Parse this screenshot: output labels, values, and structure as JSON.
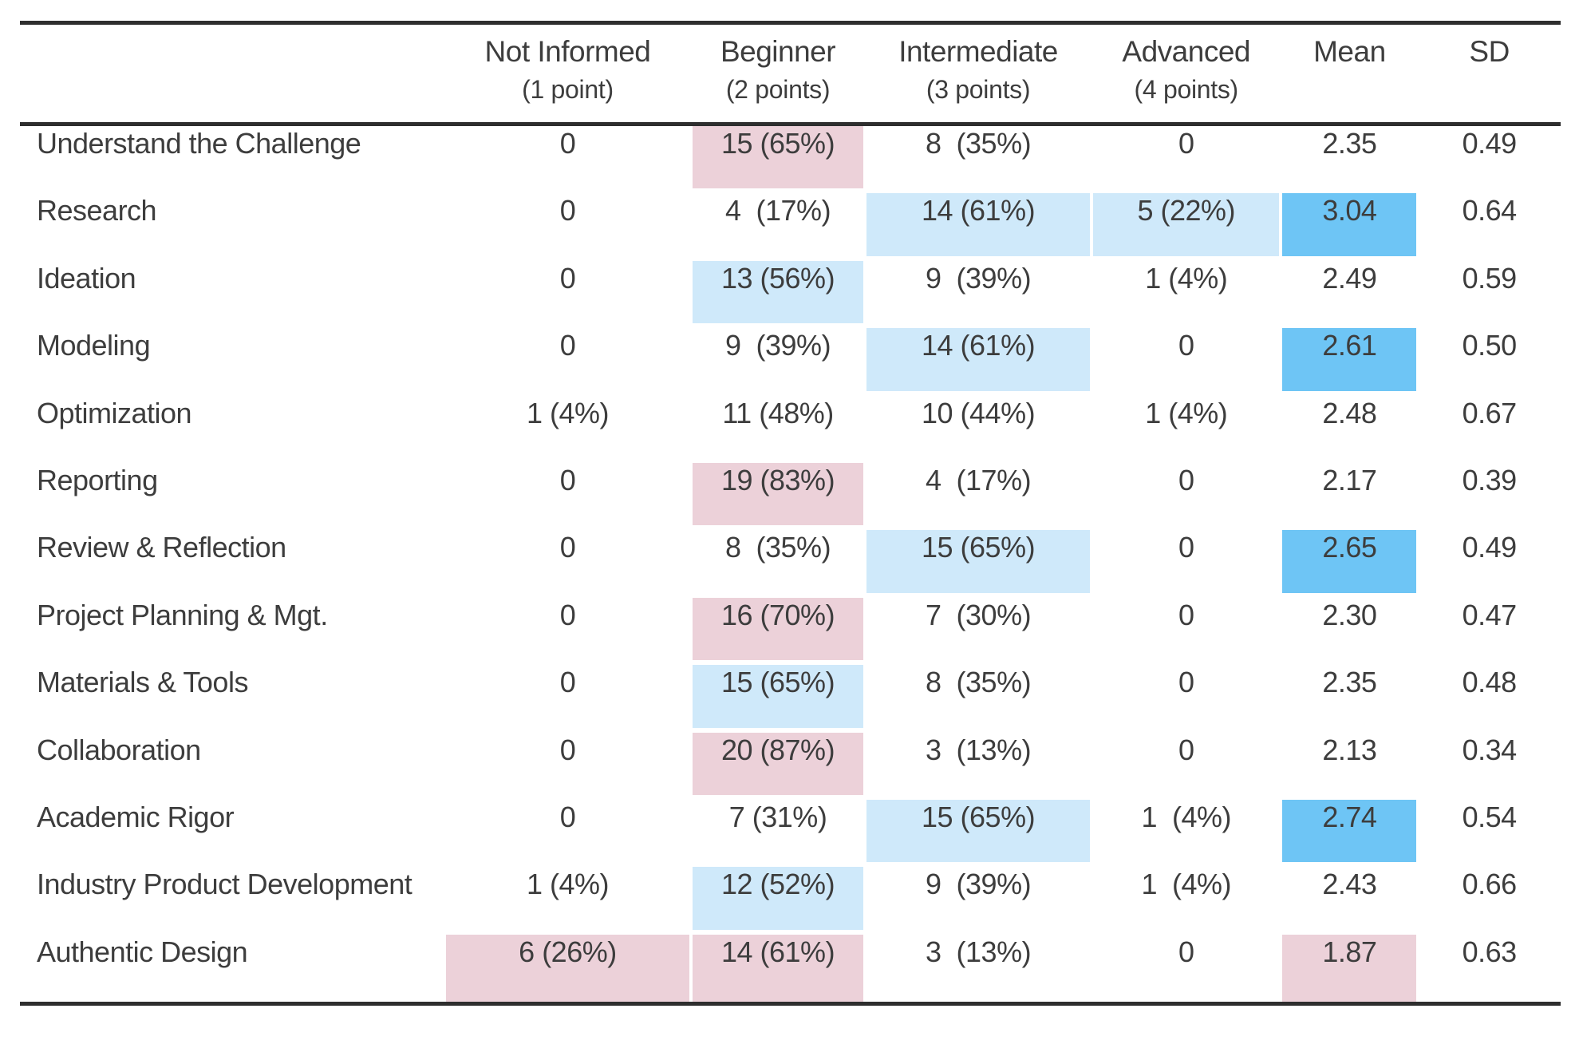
{
  "figure": {
    "colors": {
      "text": "#3d3d3d",
      "rule": "#2e2e2e"
    },
    "highlight_colors": {
      "pink": "#ecd1d9",
      "light_blue": "#cfe9fa",
      "blue": "#6ec5f5"
    },
    "columns": [
      {
        "key": "row-label",
        "label": "",
        "sublabel": ""
      },
      {
        "key": "not-informed",
        "label": "Not Informed",
        "sublabel": "(1 point)"
      },
      {
        "key": "beginner",
        "label": "Beginner",
        "sublabel": "(2 points)"
      },
      {
        "key": "intermediate",
        "label": "Intermediate",
        "sublabel": "(3 points)"
      },
      {
        "key": "advanced",
        "label": "Advanced",
        "sublabel": "(4 points)"
      },
      {
        "key": "mean",
        "label": "Mean",
        "sublabel": ""
      },
      {
        "key": "sd",
        "label": "SD",
        "sublabel": ""
      }
    ],
    "rows": [
      {
        "label": "Understand the Challenge",
        "cells": [
          {
            "text": "0"
          },
          {
            "text": "15 (65%)",
            "highlight": "pink"
          },
          {
            "text": "8  (35%)"
          },
          {
            "text": "0"
          },
          {
            "text": "2.35"
          },
          {
            "text": "0.49"
          }
        ]
      },
      {
        "label": "Research",
        "cells": [
          {
            "text": "0"
          },
          {
            "text": "4  (17%)"
          },
          {
            "text": "14 (61%)",
            "highlight": "light_blue"
          },
          {
            "text": "5 (22%)",
            "highlight": "light_blue"
          },
          {
            "text": "3.04",
            "highlight": "blue"
          },
          {
            "text": "0.64"
          }
        ]
      },
      {
        "label": "Ideation",
        "cells": [
          {
            "text": "0"
          },
          {
            "text": "13 (56%)",
            "highlight": "light_blue"
          },
          {
            "text": "9  (39%)"
          },
          {
            "text": "1 (4%)"
          },
          {
            "text": "2.49"
          },
          {
            "text": "0.59"
          }
        ]
      },
      {
        "label": "Modeling",
        "cells": [
          {
            "text": "0"
          },
          {
            "text": "9  (39%)"
          },
          {
            "text": "14 (61%)",
            "highlight": "light_blue"
          },
          {
            "text": "0"
          },
          {
            "text": "2.61",
            "highlight": "blue"
          },
          {
            "text": "0.50"
          }
        ]
      },
      {
        "label": "Optimization",
        "cells": [
          {
            "text": "1 (4%)"
          },
          {
            "text": "11 (48%)"
          },
          {
            "text": "10 (44%)"
          },
          {
            "text": "1 (4%)"
          },
          {
            "text": "2.48"
          },
          {
            "text": "0.67"
          }
        ]
      },
      {
        "label": "Reporting",
        "cells": [
          {
            "text": "0"
          },
          {
            "text": "19 (83%)",
            "highlight": "pink"
          },
          {
            "text": "4  (17%)"
          },
          {
            "text": "0"
          },
          {
            "text": "2.17"
          },
          {
            "text": "0.39"
          }
        ]
      },
      {
        "label": "Review & Reflection",
        "cells": [
          {
            "text": "0"
          },
          {
            "text": "8  (35%)"
          },
          {
            "text": "15 (65%)",
            "highlight": "light_blue"
          },
          {
            "text": "0"
          },
          {
            "text": "2.65",
            "highlight": "blue"
          },
          {
            "text": "0.49"
          }
        ]
      },
      {
        "label": "Project Planning & Mgt.",
        "cells": [
          {
            "text": "0"
          },
          {
            "text": "16 (70%)",
            "highlight": "pink"
          },
          {
            "text": "7  (30%)"
          },
          {
            "text": "0"
          },
          {
            "text": "2.30"
          },
          {
            "text": "0.47"
          }
        ]
      },
      {
        "label": "Materials & Tools",
        "cells": [
          {
            "text": "0"
          },
          {
            "text": "15 (65%)",
            "highlight": "light_blue"
          },
          {
            "text": "8  (35%)"
          },
          {
            "text": "0"
          },
          {
            "text": "2.35"
          },
          {
            "text": "0.48"
          }
        ]
      },
      {
        "label": "Collaboration",
        "cells": [
          {
            "text": "0"
          },
          {
            "text": "20 (87%)",
            "highlight": "pink"
          },
          {
            "text": "3  (13%)"
          },
          {
            "text": "0"
          },
          {
            "text": "2.13"
          },
          {
            "text": "0.34"
          }
        ]
      },
      {
        "label": "Academic Rigor",
        "cells": [
          {
            "text": "0"
          },
          {
            "text": "7 (31%)"
          },
          {
            "text": "15 (65%)",
            "highlight": "light_blue"
          },
          {
            "text": "1  (4%)"
          },
          {
            "text": "2.74",
            "highlight": "blue"
          },
          {
            "text": "0.54"
          }
        ]
      },
      {
        "label": "Industry Product Development",
        "cells": [
          {
            "text": "1 (4%)"
          },
          {
            "text": "12 (52%)",
            "highlight": "light_blue"
          },
          {
            "text": "9  (39%)"
          },
          {
            "text": "1  (4%)"
          },
          {
            "text": "2.43"
          },
          {
            "text": "0.66"
          }
        ]
      },
      {
        "label": "Authentic Design",
        "cells": [
          {
            "text": "6 (26%)",
            "highlight": "pink"
          },
          {
            "text": "14 (61%)",
            "highlight": "pink"
          },
          {
            "text": "3  (13%)"
          },
          {
            "text": "0"
          },
          {
            "text": "1.87",
            "highlight": "pink"
          },
          {
            "text": "0.63"
          }
        ]
      }
    ]
  }
}
